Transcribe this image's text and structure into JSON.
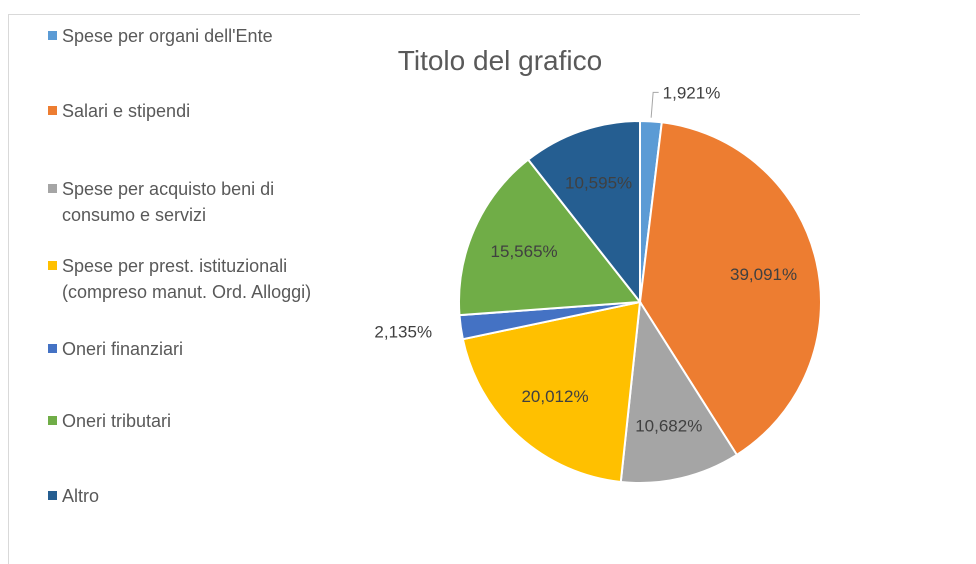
{
  "chart_data": {
    "type": "pie",
    "title": "Titolo del grafico",
    "categories": [
      "Spese per organi dell'Ente",
      "Salari e stipendi",
      "Spese per acquisto beni di consumo e servizi",
      "Spese per prest. istituzionali (compreso manut. Ord. Alloggi)",
      "Oneri finanziari",
      "Oneri tributari",
      "Altro"
    ],
    "values": [
      1.921,
      39.091,
      10.682,
      20.012,
      2.135,
      15.565,
      10.595
    ],
    "value_labels": [
      "1,921%",
      "39,091%",
      "10,682%",
      "20,012%",
      "2,135%",
      "15,565%",
      "10,595%"
    ],
    "colors": [
      "#5b9bd5",
      "#ed7d31",
      "#a5a5a5",
      "#ffc000",
      "#4472c4",
      "#70ad47",
      "#255e91"
    ],
    "legend": "left"
  }
}
